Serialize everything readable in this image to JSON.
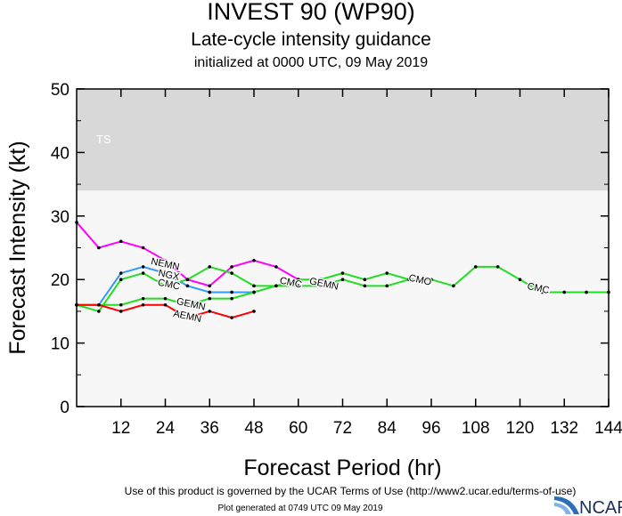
{
  "header": {
    "title": "INVEST 90 (WP90)",
    "subtitle": "Late-cycle intensity guidance",
    "initialized": "initialized at 0000 UTC, 09 May 2019"
  },
  "footer": {
    "terms": "Use of this product is governed by the UCAR Terms of Use (http://www2.ucar.edu/terms-of-use)",
    "generated": "Plot generated at 0749 UTC   09 May 2019",
    "logo": "NCAR"
  },
  "chart_data": {
    "type": "line",
    "xlabel": "Forecast Period (hr)",
    "ylabel": "Forecast Intensity (kt)",
    "xlim": [
      0,
      144
    ],
    "ylim": [
      0,
      50
    ],
    "xticks": [
      12,
      24,
      36,
      48,
      60,
      72,
      84,
      96,
      108,
      120,
      132,
      144
    ],
    "yticks": [
      0,
      10,
      20,
      30,
      40,
      50
    ],
    "grid": false,
    "bands": [
      {
        "label": "TS",
        "from": 34,
        "to": 50,
        "color": "#d8d8d8"
      },
      {
        "label": "",
        "from": 0,
        "to": 34,
        "color": "#f7f7f7"
      }
    ],
    "series": [
      {
        "color": "#ff00ff",
        "x": [
          0,
          6,
          12,
          18,
          24,
          30,
          36,
          42,
          48,
          54,
          60
        ],
        "y": [
          29,
          25,
          26,
          25,
          23,
          20,
          19,
          22,
          23,
          22,
          20
        ]
      },
      {
        "color": "#3399ff",
        "x": [
          0,
          6,
          12,
          18,
          24,
          30,
          36,
          42,
          48
        ],
        "y": [
          16,
          16,
          21,
          22,
          21,
          19,
          18,
          18,
          18
        ]
      },
      {
        "color": "#22dd22",
        "x": [
          0,
          6,
          12,
          18,
          24,
          30,
          36,
          42,
          48,
          54,
          60,
          66,
          72,
          78,
          84,
          90,
          96,
          102,
          108,
          114,
          120,
          126,
          132,
          138,
          144
        ],
        "y": [
          16,
          15,
          20,
          21,
          19,
          20,
          22,
          21,
          19,
          19,
          20,
          20,
          21,
          20,
          21,
          20,
          20,
          19,
          22,
          22,
          20,
          18,
          18,
          18,
          18
        ]
      },
      {
        "color": "#22dd22",
        "x": [
          0,
          6,
          12,
          18,
          24,
          30,
          36,
          42,
          48,
          54,
          60,
          66,
          72,
          78,
          84,
          90
        ],
        "y": [
          16,
          16,
          16,
          17,
          17,
          16,
          17,
          17,
          18,
          19,
          19,
          19,
          20,
          19,
          19,
          20
        ]
      },
      {
        "color": "#ff0000",
        "x": [
          0,
          6,
          12,
          18,
          24,
          30,
          36,
          42,
          48
        ],
        "y": [
          16,
          16,
          15,
          16,
          16,
          14,
          15,
          14,
          15
        ]
      }
    ],
    "annotations": [
      {
        "text": "NEMN",
        "x": 24,
        "y": 22.5
      },
      {
        "text": "NGX",
        "x": 25,
        "y": 20.8
      },
      {
        "text": "CMC",
        "x": 25,
        "y": 19.3
      },
      {
        "text": "GEMN",
        "x": 31,
        "y": 16.2
      },
      {
        "text": "AEMN",
        "x": 30,
        "y": 14.3
      },
      {
        "text": "CMC",
        "x": 58,
        "y": 19.6
      },
      {
        "text": "GEMN",
        "x": 67,
        "y": 19.4
      },
      {
        "text": "CMO",
        "x": 93,
        "y": 20
      },
      {
        "text": "CMC",
        "x": 125,
        "y": 18.7
      }
    ]
  }
}
